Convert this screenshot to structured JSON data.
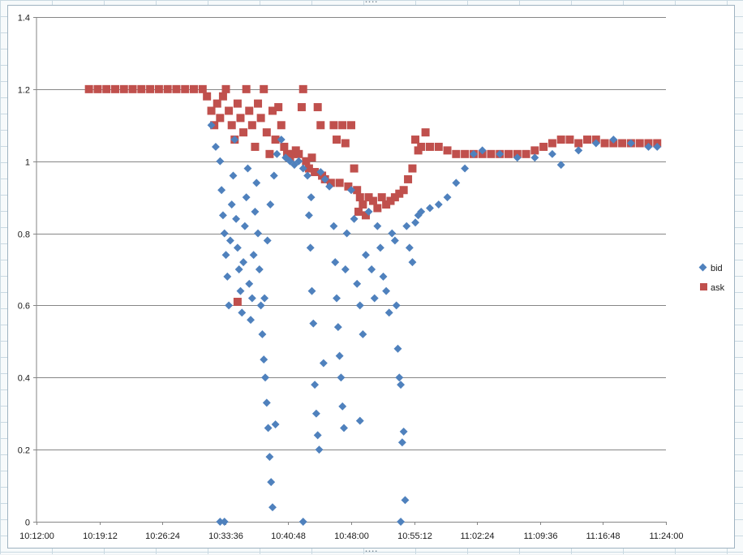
{
  "chart_data": {
    "type": "scatter",
    "title": "",
    "xlabel": "",
    "ylabel": "",
    "x_ticks": [
      "10:12:00",
      "10:19:12",
      "10:26:24",
      "10:33:36",
      "10:40:48",
      "10:48:00",
      "10:55:12",
      "11:02:24",
      "11:09:36",
      "11:16:48",
      "11:24:00"
    ],
    "y_ticks": [
      "0",
      "0.2",
      "0.4",
      "0.6",
      "0.8",
      "1",
      "1.2",
      "1.4"
    ],
    "xlim": [
      "10:12:00",
      "11:24:00"
    ],
    "ylim": [
      0,
      1.4
    ],
    "grid": "horizontal",
    "legend_position": "right",
    "series": [
      {
        "name": "bid",
        "color": "#4f81bd",
        "marker": "diamond",
        "points": [
          [
            "10:32:00",
            1.1
          ],
          [
            "10:32:30",
            1.04
          ],
          [
            "10:33:00",
            1.0
          ],
          [
            "10:33:10",
            0.92
          ],
          [
            "10:33:20",
            0.85
          ],
          [
            "10:33:30",
            0.8
          ],
          [
            "10:33:40",
            0.74
          ],
          [
            "10:33:50",
            0.68
          ],
          [
            "10:34:00",
            0.6
          ],
          [
            "10:34:10",
            0.78
          ],
          [
            "10:34:20",
            0.88
          ],
          [
            "10:34:30",
            0.96
          ],
          [
            "10:34:40",
            1.06
          ],
          [
            "10:34:50",
            0.84
          ],
          [
            "10:35:00",
            0.76
          ],
          [
            "10:35:10",
            0.7
          ],
          [
            "10:35:20",
            0.64
          ],
          [
            "10:35:30",
            0.58
          ],
          [
            "10:35:40",
            0.72
          ],
          [
            "10:35:50",
            0.82
          ],
          [
            "10:36:00",
            0.9
          ],
          [
            "10:36:10",
            0.98
          ],
          [
            "10:36:20",
            0.66
          ],
          [
            "10:36:30",
            0.56
          ],
          [
            "10:36:40",
            0.62
          ],
          [
            "10:36:50",
            0.74
          ],
          [
            "10:37:00",
            0.86
          ],
          [
            "10:37:10",
            0.94
          ],
          [
            "10:37:20",
            0.8
          ],
          [
            "10:37:30",
            0.7
          ],
          [
            "10:37:40",
            0.6
          ],
          [
            "10:37:50",
            0.52
          ],
          [
            "10:38:00",
            0.45
          ],
          [
            "10:38:10",
            0.4
          ],
          [
            "10:38:20",
            0.33
          ],
          [
            "10:38:30",
            0.26
          ],
          [
            "10:38:40",
            0.18
          ],
          [
            "10:38:50",
            0.11
          ],
          [
            "10:39:00",
            0.04
          ],
          [
            "10:38:05",
            0.62
          ],
          [
            "10:38:25",
            0.78
          ],
          [
            "10:38:45",
            0.88
          ],
          [
            "10:39:10",
            0.96
          ],
          [
            "10:39:30",
            1.02
          ],
          [
            "10:40:00",
            1.06
          ],
          [
            "10:40:30",
            1.01
          ],
          [
            "10:41:00",
            1.0
          ],
          [
            "10:41:30",
            0.99
          ],
          [
            "10:42:00",
            1.0
          ],
          [
            "10:42:30",
            0.98
          ],
          [
            "10:43:00",
            0.96
          ],
          [
            "10:43:10",
            0.85
          ],
          [
            "10:43:20",
            0.76
          ],
          [
            "10:43:30",
            0.64
          ],
          [
            "10:43:40",
            0.55
          ],
          [
            "10:43:50",
            0.38
          ],
          [
            "10:44:00",
            0.3
          ],
          [
            "10:44:10",
            0.24
          ],
          [
            "10:44:20",
            0.2
          ],
          [
            "10:43:25",
            0.9
          ],
          [
            "10:44:30",
            0.97
          ],
          [
            "10:45:00",
            0.95
          ],
          [
            "10:45:30",
            0.93
          ],
          [
            "10:46:00",
            0.82
          ],
          [
            "10:46:10",
            0.72
          ],
          [
            "10:46:20",
            0.62
          ],
          [
            "10:46:30",
            0.54
          ],
          [
            "10:46:40",
            0.46
          ],
          [
            "10:46:50",
            0.4
          ],
          [
            "10:47:00",
            0.32
          ],
          [
            "10:47:10",
            0.26
          ],
          [
            "10:47:20",
            0.7
          ],
          [
            "10:47:30",
            0.8
          ],
          [
            "10:48:00",
            0.92
          ],
          [
            "10:48:20",
            0.84
          ],
          [
            "10:48:40",
            0.66
          ],
          [
            "10:49:00",
            0.6
          ],
          [
            "10:49:20",
            0.52
          ],
          [
            "10:49:40",
            0.74
          ],
          [
            "10:50:00",
            0.86
          ],
          [
            "10:50:20",
            0.7
          ],
          [
            "10:50:40",
            0.62
          ],
          [
            "10:51:00",
            0.82
          ],
          [
            "10:51:20",
            0.76
          ],
          [
            "10:51:40",
            0.68
          ],
          [
            "10:52:00",
            0.64
          ],
          [
            "10:52:20",
            0.58
          ],
          [
            "10:52:40",
            0.8
          ],
          [
            "10:53:00",
            0.78
          ],
          [
            "10:53:10",
            0.6
          ],
          [
            "10:53:20",
            0.48
          ],
          [
            "10:53:30",
            0.4
          ],
          [
            "10:53:40",
            0.38
          ],
          [
            "10:53:50",
            0.22
          ],
          [
            "10:54:00",
            0.25
          ],
          [
            "10:54:10",
            0.06
          ],
          [
            "10:54:20",
            0.82
          ],
          [
            "10:54:40",
            0.76
          ],
          [
            "10:55:00",
            0.72
          ],
          [
            "10:55:20",
            0.83
          ],
          [
            "10:55:40",
            0.85
          ],
          [
            "10:56:00",
            0.86
          ],
          [
            "10:57:00",
            0.87
          ],
          [
            "10:58:00",
            0.88
          ],
          [
            "10:59:00",
            0.9
          ],
          [
            "11:00:00",
            0.94
          ],
          [
            "11:01:00",
            0.98
          ],
          [
            "11:02:00",
            1.02
          ],
          [
            "11:03:00",
            1.03
          ],
          [
            "11:05:00",
            1.02
          ],
          [
            "11:07:00",
            1.01
          ],
          [
            "11:09:00",
            1.01
          ],
          [
            "11:11:00",
            1.02
          ],
          [
            "11:12:00",
            0.99
          ],
          [
            "11:14:00",
            1.03
          ],
          [
            "11:16:00",
            1.05
          ],
          [
            "11:18:00",
            1.06
          ],
          [
            "11:20:00",
            1.05
          ],
          [
            "11:22:00",
            1.04
          ],
          [
            "11:23:00",
            1.04
          ],
          [
            "10:33:00",
            0.0
          ],
          [
            "10:33:30",
            0.0
          ],
          [
            "10:42:30",
            0.0
          ],
          [
            "10:53:40",
            0.0
          ],
          [
            "10:39:20",
            0.27
          ],
          [
            "10:44:50",
            0.44
          ],
          [
            "10:49:00",
            0.28
          ]
        ]
      },
      {
        "name": "ask",
        "color": "#c0504d",
        "marker": "square",
        "points": [
          [
            "10:18:00",
            1.2
          ],
          [
            "10:19:00",
            1.2
          ],
          [
            "10:20:00",
            1.2
          ],
          [
            "10:21:00",
            1.2
          ],
          [
            "10:22:00",
            1.2
          ],
          [
            "10:23:00",
            1.2
          ],
          [
            "10:24:00",
            1.2
          ],
          [
            "10:25:00",
            1.2
          ],
          [
            "10:26:00",
            1.2
          ],
          [
            "10:27:00",
            1.2
          ],
          [
            "10:28:00",
            1.2
          ],
          [
            "10:29:00",
            1.2
          ],
          [
            "10:30:00",
            1.2
          ],
          [
            "10:31:00",
            1.2
          ],
          [
            "10:31:30",
            1.18
          ],
          [
            "10:32:00",
            1.14
          ],
          [
            "10:32:20",
            1.1
          ],
          [
            "10:32:40",
            1.16
          ],
          [
            "10:33:00",
            1.12
          ],
          [
            "10:33:20",
            1.18
          ],
          [
            "10:33:40",
            1.2
          ],
          [
            "10:34:00",
            1.14
          ],
          [
            "10:34:20",
            1.1
          ],
          [
            "10:34:40",
            1.06
          ],
          [
            "10:35:00",
            1.16
          ],
          [
            "10:35:20",
            1.12
          ],
          [
            "10:35:40",
            1.08
          ],
          [
            "10:36:00",
            1.2
          ],
          [
            "10:36:20",
            1.14
          ],
          [
            "10:36:40",
            1.1
          ],
          [
            "10:37:00",
            1.04
          ],
          [
            "10:37:20",
            1.16
          ],
          [
            "10:37:40",
            1.12
          ],
          [
            "10:38:00",
            1.2
          ],
          [
            "10:38:20",
            1.08
          ],
          [
            "10:38:40",
            1.02
          ],
          [
            "10:39:00",
            1.14
          ],
          [
            "10:39:20",
            1.06
          ],
          [
            "10:39:40",
            1.15
          ],
          [
            "10:40:00",
            1.1
          ],
          [
            "10:40:20",
            1.04
          ],
          [
            "10:40:40",
            1.02
          ],
          [
            "10:41:00",
            1.01
          ],
          [
            "10:41:20",
            1.02
          ],
          [
            "10:41:40",
            1.03
          ],
          [
            "10:42:00",
            1.02
          ],
          [
            "10:42:20",
            1.15
          ],
          [
            "10:42:30",
            1.2
          ],
          [
            "10:42:50",
            1.0
          ],
          [
            "10:43:10",
            0.98
          ],
          [
            "10:43:30",
            1.01
          ],
          [
            "10:43:50",
            0.97
          ],
          [
            "10:44:10",
            1.15
          ],
          [
            "10:44:30",
            1.1
          ],
          [
            "10:44:40",
            0.96
          ],
          [
            "10:45:00",
            0.95
          ],
          [
            "10:45:40",
            0.94
          ],
          [
            "10:46:00",
            1.1
          ],
          [
            "10:46:20",
            1.06
          ],
          [
            "10:46:40",
            0.94
          ],
          [
            "10:47:00",
            1.1
          ],
          [
            "10:47:20",
            1.05
          ],
          [
            "10:47:40",
            0.93
          ],
          [
            "10:48:00",
            1.1
          ],
          [
            "10:48:20",
            0.98
          ],
          [
            "10:48:40",
            0.92
          ],
          [
            "10:49:00",
            0.9
          ],
          [
            "10:49:20",
            0.88
          ],
          [
            "10:49:40",
            0.85
          ],
          [
            "10:50:00",
            0.9
          ],
          [
            "10:50:30",
            0.89
          ],
          [
            "10:51:00",
            0.87
          ],
          [
            "10:51:30",
            0.9
          ],
          [
            "10:52:00",
            0.88
          ],
          [
            "10:52:30",
            0.89
          ],
          [
            "10:53:00",
            0.9
          ],
          [
            "10:53:30",
            0.91
          ],
          [
            "10:54:00",
            0.92
          ],
          [
            "10:54:30",
            0.95
          ],
          [
            "10:55:00",
            0.98
          ],
          [
            "10:55:20",
            1.06
          ],
          [
            "10:55:40",
            1.03
          ],
          [
            "10:56:00",
            1.04
          ],
          [
            "10:56:30",
            1.08
          ],
          [
            "10:57:00",
            1.04
          ],
          [
            "10:58:00",
            1.04
          ],
          [
            "10:59:00",
            1.03
          ],
          [
            "11:00:00",
            1.02
          ],
          [
            "11:01:00",
            1.02
          ],
          [
            "11:02:00",
            1.02
          ],
          [
            "11:03:00",
            1.02
          ],
          [
            "11:04:00",
            1.02
          ],
          [
            "11:05:00",
            1.02
          ],
          [
            "11:06:00",
            1.02
          ],
          [
            "11:07:00",
            1.02
          ],
          [
            "11:08:00",
            1.02
          ],
          [
            "11:09:00",
            1.03
          ],
          [
            "11:10:00",
            1.04
          ],
          [
            "11:11:00",
            1.05
          ],
          [
            "11:12:00",
            1.06
          ],
          [
            "11:13:00",
            1.06
          ],
          [
            "11:14:00",
            1.05
          ],
          [
            "11:15:00",
            1.06
          ],
          [
            "11:16:00",
            1.06
          ],
          [
            "11:17:00",
            1.05
          ],
          [
            "11:18:00",
            1.05
          ],
          [
            "11:19:00",
            1.05
          ],
          [
            "11:20:00",
            1.05
          ],
          [
            "11:21:00",
            1.05
          ],
          [
            "11:22:00",
            1.05
          ],
          [
            "11:23:00",
            1.05
          ],
          [
            "10:35:00",
            0.61
          ],
          [
            "10:48:50",
            0.86
          ]
        ]
      }
    ]
  }
}
